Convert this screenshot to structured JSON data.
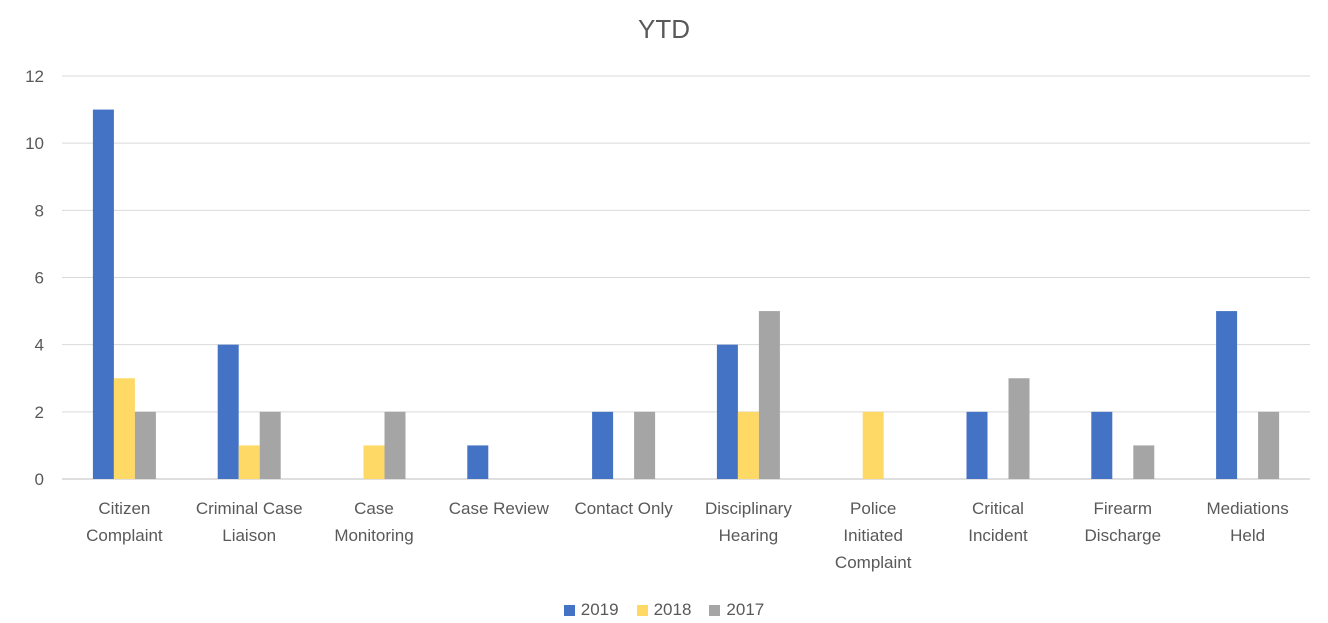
{
  "chart_data": {
    "type": "bar",
    "title": "YTD",
    "xlabel": "",
    "ylabel": "",
    "ylim": [
      0,
      12
    ],
    "yticks": [
      0,
      2,
      4,
      6,
      8,
      10,
      12
    ],
    "grid": true,
    "legend_position": "bottom",
    "categories": [
      [
        "Citizen",
        "Complaint"
      ],
      [
        "Criminal Case",
        "Liaison"
      ],
      [
        "Case",
        "Monitoring"
      ],
      [
        "Case Review"
      ],
      [
        "Contact Only"
      ],
      [
        "Disciplinary",
        "Hearing"
      ],
      [
        "Police",
        "Initiated",
        "Complaint"
      ],
      [
        "Critical",
        "Incident"
      ],
      [
        "Firearm",
        "Discharge"
      ],
      [
        "Mediations",
        "Held"
      ]
    ],
    "series": [
      {
        "name": "2019",
        "color": "#4472C4",
        "values": [
          11,
          4,
          0,
          1,
          2,
          4,
          0,
          2,
          2,
          5
        ]
      },
      {
        "name": "2018",
        "color": "#FFD966",
        "values": [
          3,
          1,
          1,
          0,
          0,
          2,
          2,
          0,
          0,
          0
        ]
      },
      {
        "name": "2017",
        "color": "#A5A5A5",
        "values": [
          2,
          2,
          2,
          0,
          2,
          5,
          0,
          3,
          1,
          2
        ]
      }
    ]
  }
}
